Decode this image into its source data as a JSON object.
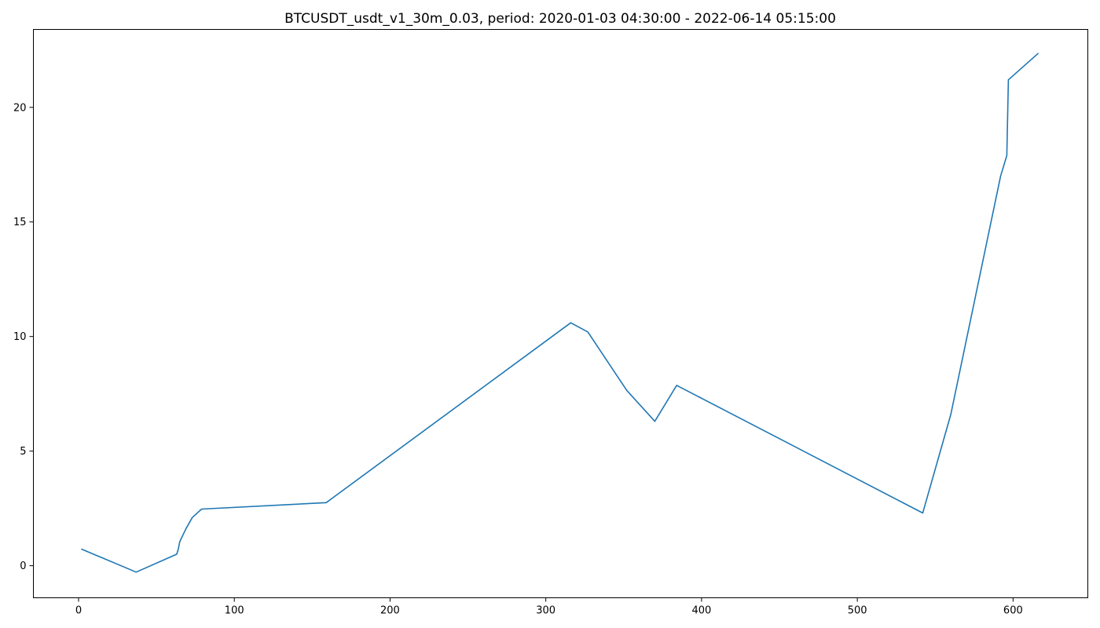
{
  "chart_data": {
    "type": "line",
    "title": "BTCUSDT_usdt_v1_30m_0.03, period: 2020-01-03 04:30:00 - 2022-06-14 05:15:00",
    "xlabel": "",
    "ylabel": "",
    "xlim": [
      -29,
      648
    ],
    "ylim": [
      -1.4,
      23.4
    ],
    "xticks": [
      0,
      100,
      200,
      300,
      400,
      500,
      600
    ],
    "yticks": [
      0,
      5,
      10,
      15,
      20
    ],
    "grid": false,
    "legend": "none",
    "series": [
      {
        "color": "#1f77b4",
        "x": [
          2,
          37,
          63,
          64,
          65,
          69,
          73,
          79,
          159,
          316,
          327,
          352,
          370,
          384,
          542,
          560,
          592,
          596,
          597,
          616
        ],
        "y": [
          0.72,
          -0.28,
          0.5,
          0.72,
          1.05,
          1.62,
          2.1,
          2.47,
          2.75,
          10.6,
          10.2,
          7.65,
          6.3,
          7.87,
          2.3,
          6.6,
          17.0,
          17.9,
          21.2,
          22.35
        ]
      }
    ]
  }
}
